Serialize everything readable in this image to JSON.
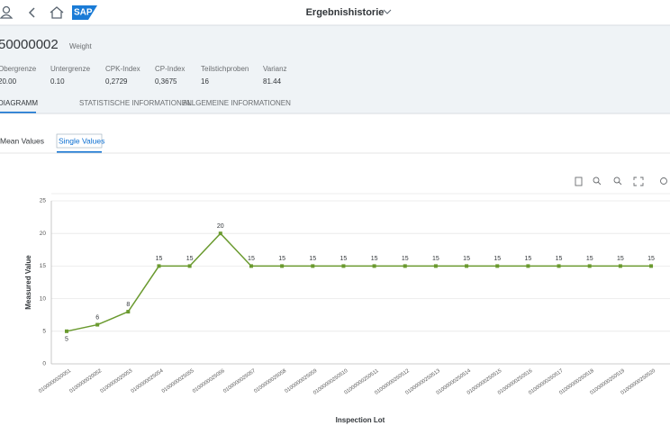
{
  "app_title": "Ergebnishistorie",
  "object": {
    "id": "50000002",
    "description": "Weight"
  },
  "attributes": [
    {
      "label": "Obergrenze",
      "value": "20.00"
    },
    {
      "label": "Untergrenze",
      "value": "0.10"
    },
    {
      "label": "CPK-Index",
      "value": "0,2729"
    },
    {
      "label": "CP-Index",
      "value": "0,3675"
    },
    {
      "label": "Teilstichproben",
      "value": "16"
    },
    {
      "label": "Varianz",
      "value": "81.44"
    }
  ],
  "tabs": [
    "DIAGRAMM",
    "STATISTISCHE INFORMATIONEN",
    "ALLGEMEINE INFORMATIONEN"
  ],
  "views": [
    "Mean Values",
    "Single Values"
  ],
  "chart_data": {
    "type": "line",
    "x_label": "Inspection Lot",
    "y_label": "Measured Value",
    "categories": [
      "0100000020051",
      "0100000020052",
      "0100000020053",
      "0100000025054",
      "0100000025055",
      "0100000025056",
      "0100000025057",
      "0100000025058",
      "0100000025059",
      "01000000250510",
      "01000000250511",
      "01000000250512",
      "01000000250513",
      "01000000250514",
      "01000000250515",
      "01000000250516",
      "01000000250517",
      "01000000250518",
      "01000000250519",
      "01000000250520"
    ],
    "series": [
      {
        "color": "#6a9a2f",
        "values": [
          5,
          6,
          8,
          15,
          15,
          20,
          15,
          15,
          15,
          15,
          15,
          15,
          15,
          15,
          15,
          15,
          15,
          15,
          15,
          15
        ]
      }
    ],
    "ylim": [
      0,
      25
    ],
    "yticks": [
      0,
      5,
      10,
      15,
      20,
      25
    ],
    "grid": true
  }
}
